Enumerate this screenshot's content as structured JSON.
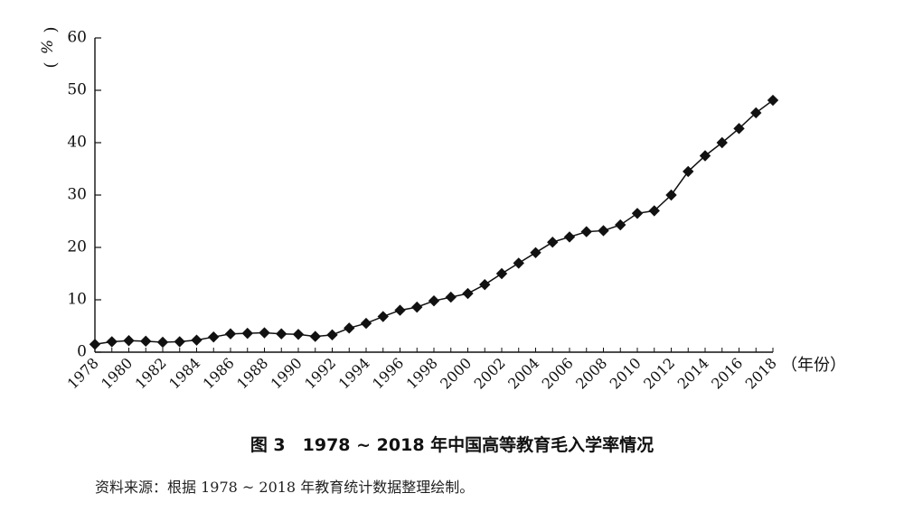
{
  "chart_data": {
    "type": "line",
    "title": "",
    "xlabel": "（年份）",
    "ylabel": "%",
    "ylim": [
      0,
      60
    ],
    "yticks": [
      0,
      10,
      20,
      30,
      40,
      50,
      60
    ],
    "grid": false,
    "legend": "none",
    "xtick_labels": [
      "1978",
      "1980",
      "1982",
      "1984",
      "1986",
      "1988",
      "1990",
      "1992",
      "1994",
      "1996",
      "1998",
      "2000",
      "2002",
      "2004",
      "2006",
      "2008",
      "2010",
      "2012",
      "2014",
      "2016",
      "2018"
    ],
    "marker": "diamond",
    "line_color": "#111111",
    "series": [
      {
        "x": [
          1978,
          1979,
          1980,
          1981,
          1982,
          1983,
          1984,
          1985,
          1986,
          1987,
          1988,
          1989,
          1990,
          1991,
          1992,
          1993,
          1994,
          1995,
          1996,
          1997,
          1998,
          1999,
          2000,
          2001,
          2002,
          2003,
          2004,
          2005,
          2006,
          2007,
          2008,
          2009,
          2010,
          2011,
          2012,
          2013,
          2014,
          2015,
          2016,
          2017,
          2018
        ],
        "y": [
          1.5,
          2.0,
          2.2,
          2.1,
          1.9,
          2.0,
          2.3,
          2.9,
          3.5,
          3.6,
          3.7,
          3.5,
          3.4,
          3.0,
          3.3,
          4.6,
          5.5,
          6.8,
          8.0,
          8.6,
          9.8,
          10.5,
          11.2,
          12.9,
          15.0,
          17.0,
          19.0,
          21.0,
          22.0,
          23.0,
          23.2,
          24.3,
          26.5,
          27.0,
          30.0,
          34.5,
          37.5,
          40.0,
          42.7,
          45.7,
          48.1
        ]
      }
    ]
  },
  "caption": "图 3　1978 ~ 2018 年中国高等教育毛入学率情况",
  "source": "资料来源：根据 1978 ~ 2018 年教育统计数据整理绘制。"
}
